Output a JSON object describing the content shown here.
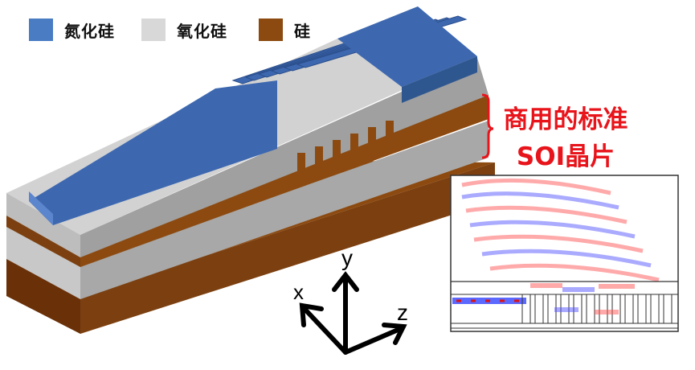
{
  "legend": [
    {
      "label": "氮化硅",
      "color": "#4a7cc4"
    },
    {
      "label": "氧化硅",
      "color": "#d8d8d8"
    },
    {
      "label": "硅",
      "color": "#8c4a10"
    }
  ],
  "annotation": {
    "line1": "商用的标准",
    "line2": "SOI晶片",
    "color": "#e8141b"
  },
  "axes": {
    "x": "x",
    "y": "y",
    "z": "z"
  }
}
